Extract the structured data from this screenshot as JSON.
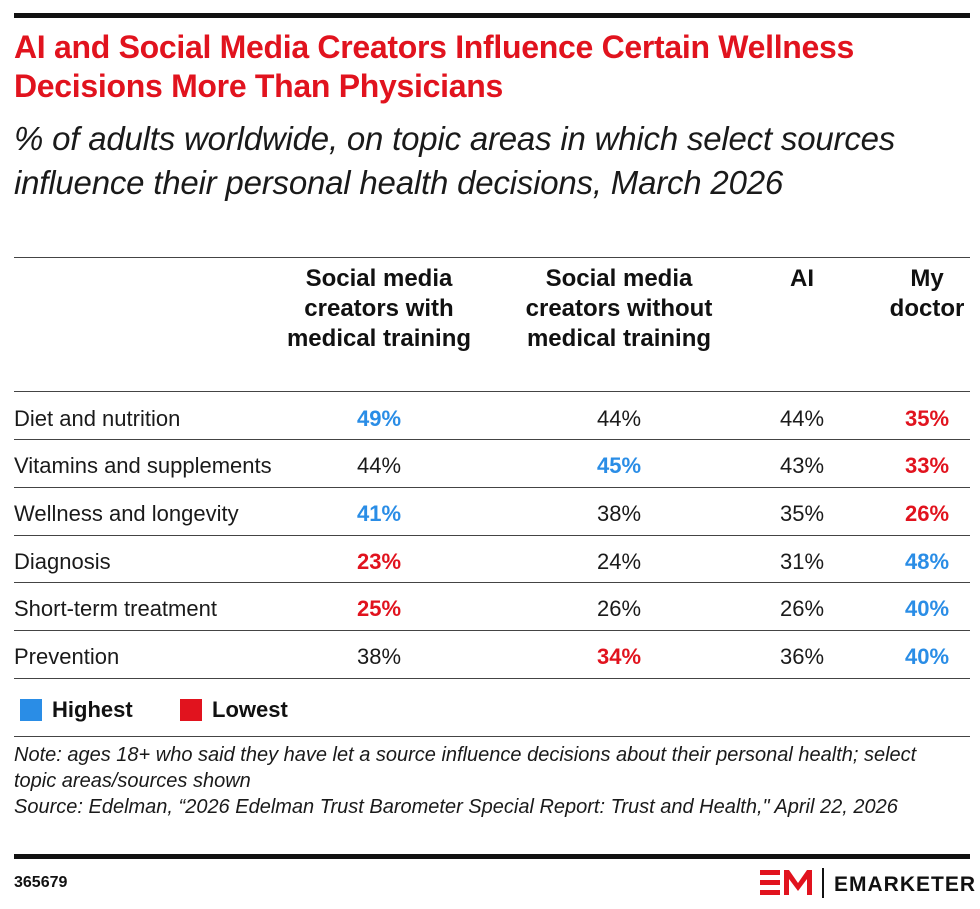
{
  "chart_data": {
    "type": "table",
    "title": "AI and Social Media Creators Influence Certain Wellness Decisions More Than Physicians",
    "subtitle": "% of adults worldwide, on topic areas in which select sources influence their personal health decisions, March 2026",
    "columns": [
      "Social media creators with medical training",
      "Social media creators without medical training",
      "AI",
      "My doctor"
    ],
    "rows": [
      {
        "label": "Diet and nutrition",
        "values": [
          "49%",
          "44%",
          "44%",
          "35%"
        ],
        "status": [
          "high",
          "",
          "",
          "low"
        ]
      },
      {
        "label": "Vitamins and supplements",
        "values": [
          "44%",
          "45%",
          "43%",
          "33%"
        ],
        "status": [
          "",
          "high",
          "",
          "low"
        ]
      },
      {
        "label": "Wellness and longevity",
        "values": [
          "41%",
          "38%",
          "35%",
          "26%"
        ],
        "status": [
          "high",
          "",
          "",
          "low"
        ]
      },
      {
        "label": "Diagnosis",
        "values": [
          "23%",
          "24%",
          "31%",
          "48%"
        ],
        "status": [
          "low",
          "",
          "",
          "high"
        ]
      },
      {
        "label": "Short-term treatment",
        "values": [
          "25%",
          "26%",
          "26%",
          "40%"
        ],
        "status": [
          "low",
          "",
          "",
          "high"
        ]
      },
      {
        "label": "Prevention",
        "values": [
          "38%",
          "34%",
          "36%",
          "40%"
        ],
        "status": [
          "",
          "low",
          "",
          "high"
        ]
      }
    ],
    "legend": [
      {
        "label": "Highest",
        "color": "#2a8de6"
      },
      {
        "label": "Lowest",
        "color": "#e1131e"
      }
    ],
    "note": "Note: ages 18+ who said they have let a source influence decisions about their personal health; select topic areas/sources shown",
    "source": "Source: Edelman, “2026 Edelman Trust Barometer Special Report: Trust and Health,\" April 22, 2026"
  },
  "footer": {
    "chart_id": "365679",
    "brand": "EMARKETER"
  },
  "colors": {
    "title": "#e1131e",
    "highest": "#2a8de6",
    "lowest": "#e1131e"
  }
}
